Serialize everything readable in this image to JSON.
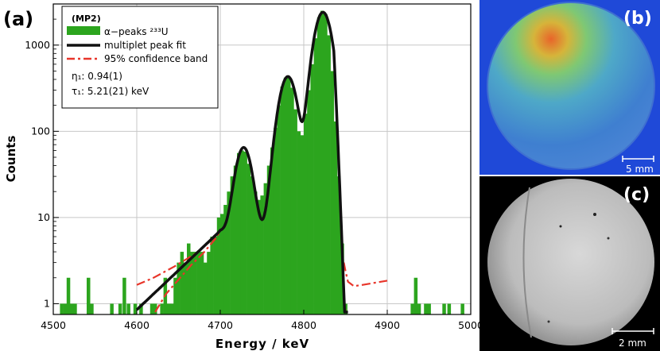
{
  "panels": {
    "a_label": "(a)",
    "b_label": "(b)",
    "c_label": "(c)",
    "b_scale": "5 mm",
    "c_scale": "2 mm"
  },
  "chart_data": {
    "type": "bar",
    "xlabel": "Energy / keV",
    "ylabel": "Counts",
    "xlim": [
      4500,
      5000
    ],
    "ylim": [
      0.75,
      3000
    ],
    "yscale": "log",
    "xticks": [
      4500,
      4600,
      4700,
      4800,
      4900,
      5000
    ],
    "yticks": [
      {
        "v": 1,
        "label": "1"
      },
      {
        "v": 10,
        "label": "10"
      },
      {
        "v": 100,
        "label": "100"
      },
      {
        "v": 1000,
        "label": "1000"
      }
    ],
    "grid": true,
    "legend_position": "top-left",
    "legend": {
      "title": "(MP2)",
      "hist_label": "α−peaks ²³³U",
      "fit_label": "multiplet peak fit",
      "band_label": "95% confidence band",
      "param1": "η₁: 0.94(1)",
      "param2": "τ₁: 5.21(21) keV"
    },
    "colors": {
      "histogram": "#2ca51e",
      "fit": "#111111",
      "band": "#e8352a"
    },
    "fit_params": {
      "x_start": 4600,
      "x_end": 4853,
      "peaks": [
        {
          "mu": 4728,
          "amp": 58,
          "sigma": 8
        },
        {
          "mu": 4781,
          "amp": 425,
          "sigma": 9
        },
        {
          "mu": 4823,
          "amp": 2400,
          "sigma": 9
        }
      ],
      "tail_start_value": 0.85,
      "tail_end_x": 4700,
      "tail_end_value": 7
    },
    "band": {
      "upper": [
        [
          4600,
          1.65
        ],
        [
          4620,
          2.0
        ],
        [
          4645,
          2.7
        ],
        [
          4670,
          3.8
        ],
        [
          4690,
          5.5
        ],
        [
          4700,
          7
        ]
      ],
      "lower": [
        [
          4622,
          0.8
        ],
        [
          4635,
          1.3
        ],
        [
          4650,
          1.9
        ],
        [
          4665,
          2.8
        ],
        [
          4680,
          3.9
        ],
        [
          4695,
          5.8
        ],
        [
          4700,
          7
        ]
      ],
      "right": [
        [
          4848,
          3.0
        ],
        [
          4850,
          2.4
        ],
        [
          4853,
          1.8
        ],
        [
          4860,
          1.6
        ],
        [
          4870,
          1.65
        ],
        [
          4885,
          1.75
        ],
        [
          4900,
          1.85
        ]
      ],
      "right_low": [
        [
          4848,
          1.2
        ],
        [
          4850,
          0.8
        ]
      ]
    },
    "histogram_bins": [
      [
        4510,
        1
      ],
      [
        4514,
        1
      ],
      [
        4518,
        2
      ],
      [
        4522,
        1
      ],
      [
        4526,
        1
      ],
      [
        4542,
        2
      ],
      [
        4546,
        1
      ],
      [
        4570,
        1
      ],
      [
        4580,
        1
      ],
      [
        4585,
        2
      ],
      [
        4590,
        1
      ],
      [
        4598,
        1
      ],
      [
        4605,
        1
      ],
      [
        4618,
        1
      ],
      [
        4622,
        1
      ],
      [
        4630,
        1
      ],
      [
        4634,
        2
      ],
      [
        4638,
        1
      ],
      [
        4642,
        1
      ],
      [
        4646,
        2
      ],
      [
        4650,
        3
      ],
      [
        4654,
        4
      ],
      [
        4658,
        3
      ],
      [
        4662,
        5
      ],
      [
        4666,
        4
      ],
      [
        4670,
        4
      ],
      [
        4674,
        4
      ],
      [
        4678,
        4
      ],
      [
        4682,
        3
      ],
      [
        4686,
        4
      ],
      [
        4690,
        6
      ],
      [
        4694,
        6
      ],
      [
        4698,
        10
      ],
      [
        4702,
        11
      ],
      [
        4706,
        14
      ],
      [
        4710,
        20
      ],
      [
        4714,
        30
      ],
      [
        4718,
        40
      ],
      [
        4722,
        56
      ],
      [
        4726,
        60
      ],
      [
        4730,
        58
      ],
      [
        4734,
        42
      ],
      [
        4738,
        30
      ],
      [
        4742,
        20
      ],
      [
        4746,
        16
      ],
      [
        4750,
        18
      ],
      [
        4754,
        25
      ],
      [
        4758,
        40
      ],
      [
        4762,
        65
      ],
      [
        4766,
        110
      ],
      [
        4770,
        200
      ],
      [
        4774,
        330
      ],
      [
        4778,
        420
      ],
      [
        4782,
        430
      ],
      [
        4786,
        320
      ],
      [
        4790,
        180
      ],
      [
        4794,
        100
      ],
      [
        4798,
        90
      ],
      [
        4802,
        160
      ],
      [
        4806,
        300
      ],
      [
        4810,
        600
      ],
      [
        4814,
        1200
      ],
      [
        4818,
        2100
      ],
      [
        4822,
        2500
      ],
      [
        4826,
        2300
      ],
      [
        4830,
        1300
      ],
      [
        4834,
        500
      ],
      [
        4838,
        130
      ],
      [
        4842,
        30
      ],
      [
        4846,
        5
      ],
      [
        4850,
        1
      ],
      [
        4930,
        1
      ],
      [
        4934,
        2
      ],
      [
        4938,
        1
      ],
      [
        4946,
        1
      ],
      [
        4950,
        1
      ],
      [
        4968,
        1
      ],
      [
        4974,
        1
      ],
      [
        4990,
        1
      ]
    ]
  }
}
